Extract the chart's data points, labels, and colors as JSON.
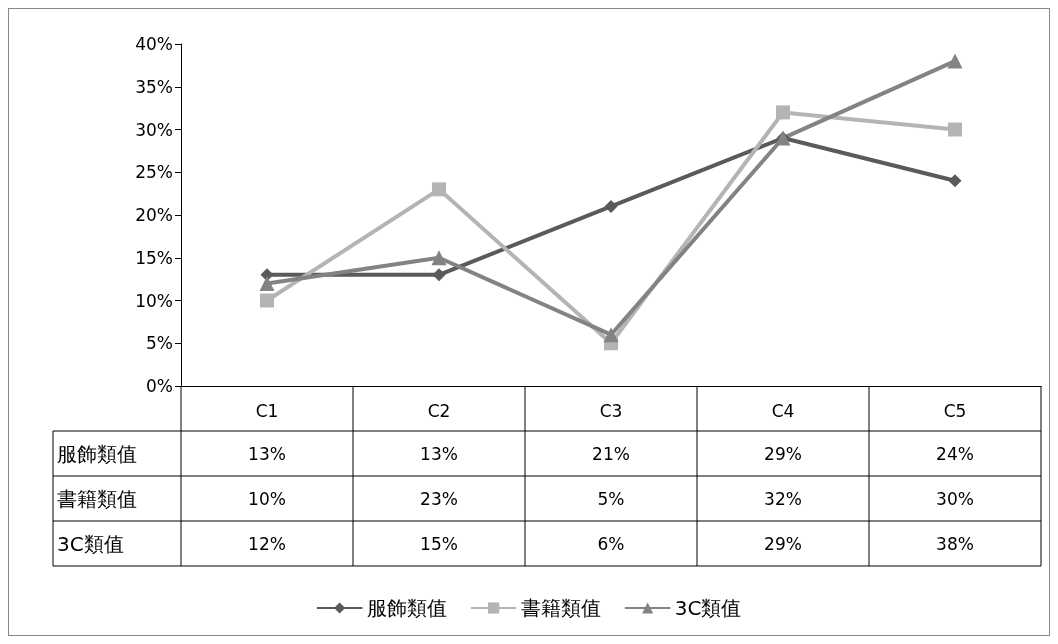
{
  "chart_data": {
    "type": "line",
    "categories": [
      "C1",
      "C2",
      "C3",
      "C4",
      "C5"
    ],
    "series": [
      {
        "name": "服飾類值",
        "color": "#5a5a5a",
        "marker": "diamond",
        "values": [
          13,
          13,
          21,
          29,
          24
        ],
        "value_labels": [
          "13%",
          "13%",
          "21%",
          "29%",
          "24%"
        ]
      },
      {
        "name": "書籍類值",
        "color": "#b4b4b4",
        "marker": "square",
        "values": [
          10,
          23,
          5,
          32,
          30
        ],
        "value_labels": [
          "10%",
          "23%",
          "5%",
          "32%",
          "30%"
        ]
      },
      {
        "name": "3C類值",
        "color": "#838383",
        "marker": "triangle",
        "values": [
          12,
          15,
          6,
          29,
          38
        ],
        "value_labels": [
          "12%",
          "15%",
          "6%",
          "29%",
          "38%"
        ]
      }
    ],
    "ylim": [
      0,
      40
    ],
    "yticks": [
      {
        "value": 0,
        "label": "0%"
      },
      {
        "value": 5,
        "label": "5%"
      },
      {
        "value": 10,
        "label": "10%"
      },
      {
        "value": 15,
        "label": "15%"
      },
      {
        "value": 20,
        "label": "20%"
      },
      {
        "value": 25,
        "label": "25%"
      },
      {
        "value": 30,
        "label": "30%"
      },
      {
        "value": 35,
        "label": "35%"
      },
      {
        "value": 40,
        "label": "40%"
      }
    ],
    "grid": false,
    "legend": "bottom",
    "line_style": "solid"
  }
}
